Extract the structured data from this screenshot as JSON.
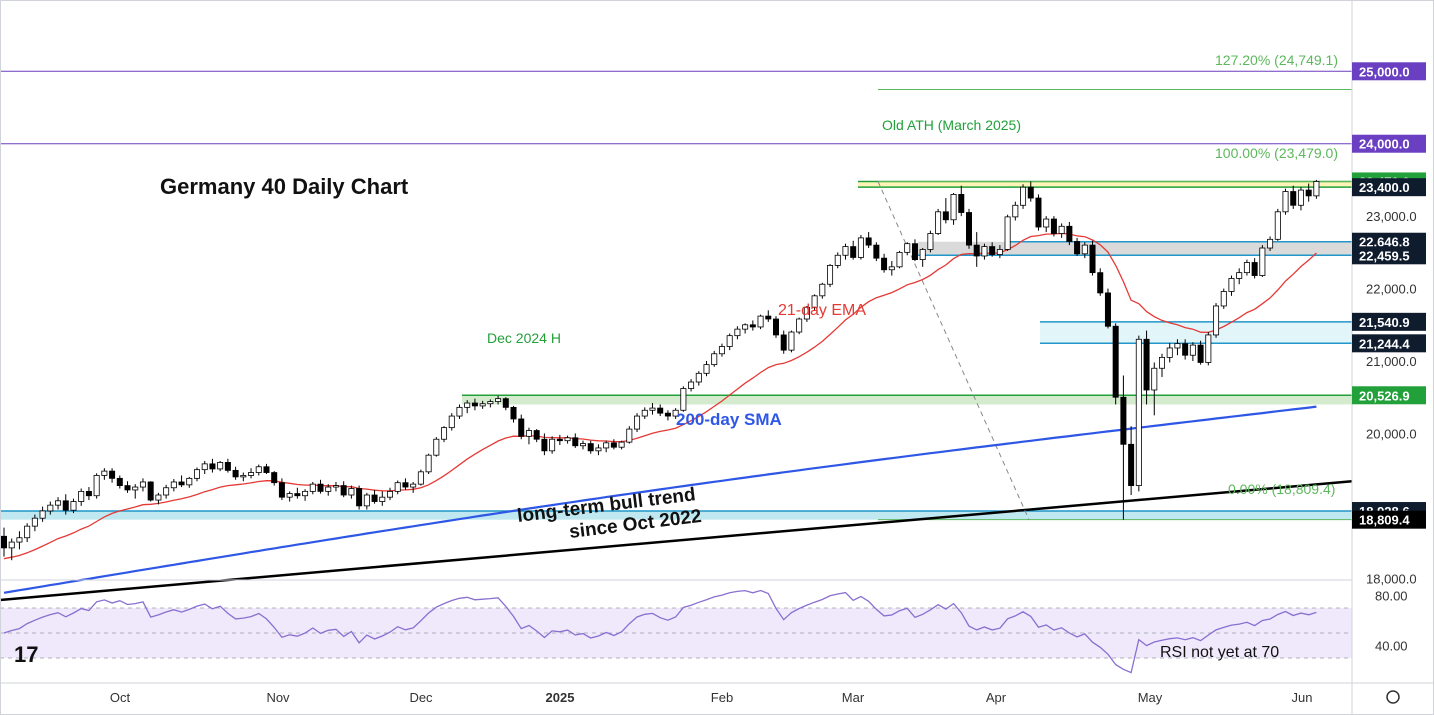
{
  "chart_data": {
    "type": "candlestick",
    "title": "Germany 40 Daily Chart",
    "indicators": {
      "ema_label": "21-day EMA",
      "sma_label": "200-day SMA",
      "ema_color": "#e53935",
      "sma_color": "#2f57e6",
      "rsi_color": "#8a6fd1"
    },
    "y_axis": {
      "ticks": [
        {
          "value": 18000,
          "label": "18,000.0"
        },
        {
          "value": 19000,
          "label": "19,000.0"
        },
        {
          "value": 20000,
          "label": "20,000.0"
        },
        {
          "value": 21000,
          "label": "21,000.0"
        },
        {
          "value": 22000,
          "label": "22,000.0"
        },
        {
          "value": 23000,
          "label": "23,000.0"
        }
      ],
      "ylim": [
        17200,
        25300
      ]
    },
    "x_axis": {
      "ticks": [
        {
          "label": "Oct",
          "bold": false
        },
        {
          "label": "Nov",
          "bold": false
        },
        {
          "label": "Dec",
          "bold": false
        },
        {
          "label": "2025",
          "bold": true
        },
        {
          "label": "Feb",
          "bold": false
        },
        {
          "label": "Mar",
          "bold": false
        },
        {
          "label": "Apr",
          "bold": false
        },
        {
          "label": "May",
          "bold": false
        },
        {
          "label": "Jun",
          "bold": false
        }
      ]
    },
    "price_labels": [
      {
        "value": 25000,
        "label": "25,000.0",
        "color": "#6a3fc1"
      },
      {
        "value": 24000,
        "label": "24,000.0",
        "color": "#6a3fc1"
      },
      {
        "value": 23479,
        "label": "23,479.0",
        "color": "#22a03a"
      },
      {
        "value": 23400,
        "label": "23,400.0",
        "color": "#0f1c2e"
      },
      {
        "value": 22646.8,
        "label": "22,646.8",
        "color": "#0f1c2e"
      },
      {
        "value": 22459.5,
        "label": "22,459.5",
        "color": "#0f1c2e"
      },
      {
        "value": 21540.9,
        "label": "21,540.9",
        "color": "#0f1c2e"
      },
      {
        "value": 21244.4,
        "label": "21,244.4",
        "color": "#0f1c2e"
      },
      {
        "value": 20526.9,
        "label": "20,526.9",
        "color": "#22a03a"
      },
      {
        "value": 18928.6,
        "label": "18,928.6",
        "color": "#0f1c2e"
      },
      {
        "value": 18809.4,
        "label": "18,809.4",
        "color": "#000000"
      }
    ],
    "annotations": {
      "old_ath": "Old ATH (March 2025)",
      "dec_high": "Dec 2024 H",
      "trend_line1": "long-term bull trend",
      "trend_line2": "since Oct 2022",
      "rsi_note": "RSI not yet at 70",
      "fib_127": "127.20% (24,749.1)",
      "fib_100": "100.00% (23,479.0)",
      "fib_0": "0.00% (18,809.4)"
    },
    "fibonacci": [
      {
        "level": 1.272,
        "value": 24749.1
      },
      {
        "level": 1.0,
        "value": 23479.0
      },
      {
        "level": 0.0,
        "value": 18809.4
      }
    ],
    "zones": [
      {
        "from": 23400,
        "to": 23479,
        "color": "#fff3b0"
      },
      {
        "from": 22459.5,
        "to": 22646.8,
        "color": "#d6d6d6"
      },
      {
        "from": 21244.4,
        "to": 21540.9,
        "color": "#dff4f8"
      },
      {
        "from": 20400,
        "to": 20526.9,
        "color": "#cfe9c9"
      },
      {
        "from": 18809.4,
        "to": 18928.6,
        "color": "#b8e6ee"
      }
    ],
    "rsi": {
      "ticks": [
        {
          "value": 80,
          "label": "80.00"
        },
        {
          "value": 40,
          "label": "40.00"
        }
      ],
      "levels": [
        70,
        50,
        30
      ],
      "ylim": [
        15,
        95
      ]
    },
    "ohlc": [
      [
        18580,
        18700,
        18300,
        18420
      ],
      [
        18420,
        18550,
        18250,
        18500
      ],
      [
        18500,
        18650,
        18400,
        18560
      ],
      [
        18560,
        18760,
        18500,
        18720
      ],
      [
        18720,
        18880,
        18650,
        18830
      ],
      [
        18830,
        18990,
        18780,
        18930
      ],
      [
        18930,
        19060,
        18880,
        19010
      ],
      [
        19010,
        19120,
        18950,
        19070
      ],
      [
        19070,
        19160,
        18880,
        18940
      ],
      [
        18940,
        19100,
        18900,
        19060
      ],
      [
        19060,
        19240,
        19000,
        19200
      ],
      [
        19200,
        19260,
        19080,
        19140
      ],
      [
        19140,
        19450,
        19100,
        19420
      ],
      [
        19420,
        19520,
        19360,
        19480
      ],
      [
        19480,
        19520,
        19320,
        19380
      ],
      [
        19380,
        19420,
        19240,
        19280
      ],
      [
        19280,
        19340,
        19180,
        19220
      ],
      [
        19220,
        19300,
        19100,
        19260
      ],
      [
        19260,
        19380,
        19200,
        19330
      ],
      [
        19330,
        19340,
        19060,
        19080
      ],
      [
        19080,
        19180,
        19020,
        19150
      ],
      [
        19150,
        19290,
        19100,
        19250
      ],
      [
        19250,
        19370,
        19200,
        19330
      ],
      [
        19330,
        19420,
        19260,
        19290
      ],
      [
        19290,
        19400,
        19250,
        19380
      ],
      [
        19380,
        19530,
        19340,
        19500
      ],
      [
        19500,
        19620,
        19440,
        19580
      ],
      [
        19580,
        19650,
        19460,
        19510
      ],
      [
        19510,
        19620,
        19480,
        19600
      ],
      [
        19600,
        19650,
        19460,
        19490
      ],
      [
        19490,
        19540,
        19360,
        19400
      ],
      [
        19400,
        19460,
        19340,
        19420
      ],
      [
        19420,
        19520,
        19380,
        19460
      ],
      [
        19460,
        19570,
        19420,
        19540
      ],
      [
        19540,
        19580,
        19440,
        19460
      ],
      [
        19460,
        19480,
        19280,
        19320
      ],
      [
        19320,
        19380,
        19080,
        19120
      ],
      [
        19120,
        19200,
        19060,
        19170
      ],
      [
        19170,
        19250,
        19100,
        19140
      ],
      [
        19140,
        19230,
        19070,
        19200
      ],
      [
        19200,
        19330,
        19160,
        19300
      ],
      [
        19300,
        19360,
        19170,
        19200
      ],
      [
        19200,
        19300,
        19140,
        19260
      ],
      [
        19260,
        19330,
        19200,
        19280
      ],
      [
        19280,
        19340,
        19120,
        19150
      ],
      [
        19150,
        19280,
        19100,
        19240
      ],
      [
        19240,
        19280,
        18950,
        19000
      ],
      [
        19000,
        19180,
        18950,
        19150
      ],
      [
        19150,
        19220,
        19030,
        19060
      ],
      [
        19060,
        19200,
        19000,
        19120
      ],
      [
        19120,
        19250,
        19080,
        19200
      ],
      [
        19200,
        19350,
        19160,
        19320
      ],
      [
        19320,
        19380,
        19220,
        19260
      ],
      [
        19260,
        19330,
        19180,
        19300
      ],
      [
        19300,
        19500,
        19280,
        19470
      ],
      [
        19470,
        19720,
        19440,
        19700
      ],
      [
        19700,
        19950,
        19680,
        19920
      ],
      [
        19920,
        20100,
        19880,
        20080
      ],
      [
        20080,
        20280,
        20040,
        20240
      ],
      [
        20240,
        20400,
        20200,
        20360
      ],
      [
        20360,
        20460,
        20280,
        20420
      ],
      [
        20420,
        20480,
        20320,
        20380
      ],
      [
        20380,
        20450,
        20340,
        20410
      ],
      [
        20410,
        20470,
        20360,
        20440
      ],
      [
        20440,
        20520,
        20400,
        20480
      ],
      [
        20480,
        20500,
        20320,
        20360
      ],
      [
        20360,
        20380,
        20150,
        20200
      ],
      [
        20200,
        20260,
        19920,
        19960
      ],
      [
        19960,
        20080,
        19850,
        20040
      ],
      [
        20040,
        20060,
        19880,
        19920
      ],
      [
        19920,
        20000,
        19700,
        19760
      ],
      [
        19760,
        19960,
        19720,
        19920
      ],
      [
        19920,
        19980,
        19840,
        19900
      ],
      [
        19900,
        19970,
        19860,
        19940
      ],
      [
        19940,
        20000,
        19800,
        19830
      ],
      [
        19830,
        19900,
        19780,
        19860
      ],
      [
        19860,
        19900,
        19720,
        19760
      ],
      [
        19760,
        19850,
        19700,
        19800
      ],
      [
        19800,
        19900,
        19740,
        19870
      ],
      [
        19870,
        19920,
        19780,
        19810
      ],
      [
        19810,
        19900,
        19780,
        19880
      ],
      [
        19880,
        20100,
        19860,
        20060
      ],
      [
        20060,
        20280,
        20020,
        20240
      ],
      [
        20240,
        20360,
        20200,
        20320
      ],
      [
        20320,
        20420,
        20260,
        20350
      ],
      [
        20350,
        20400,
        20240,
        20280
      ],
      [
        20280,
        20320,
        20180,
        20240
      ],
      [
        20240,
        20350,
        20200,
        20320
      ],
      [
        20320,
        20650,
        20300,
        20620
      ],
      [
        20620,
        20750,
        20580,
        20710
      ],
      [
        20710,
        20860,
        20660,
        20830
      ],
      [
        20830,
        21000,
        20790,
        20950
      ],
      [
        20950,
        21140,
        20920,
        21100
      ],
      [
        21100,
        21240,
        21060,
        21200
      ],
      [
        21200,
        21380,
        21150,
        21350
      ],
      [
        21350,
        21480,
        21300,
        21440
      ],
      [
        21440,
        21520,
        21380,
        21500
      ],
      [
        21500,
        21560,
        21420,
        21470
      ],
      [
        21470,
        21640,
        21440,
        21620
      ],
      [
        21620,
        21700,
        21540,
        21580
      ],
      [
        21580,
        21620,
        21320,
        21360
      ],
      [
        21360,
        21420,
        21100,
        21150
      ],
      [
        21150,
        21420,
        21120,
        21400
      ],
      [
        21400,
        21600,
        21370,
        21580
      ],
      [
        21580,
        21760,
        21540,
        21740
      ],
      [
        21740,
        21920,
        21700,
        21900
      ],
      [
        21900,
        22080,
        21860,
        22060
      ],
      [
        22060,
        22340,
        22020,
        22320
      ],
      [
        22320,
        22500,
        22280,
        22460
      ],
      [
        22460,
        22620,
        22400,
        22580
      ],
      [
        22580,
        22660,
        22400,
        22430
      ],
      [
        22430,
        22740,
        22400,
        22700
      ],
      [
        22700,
        22780,
        22560,
        22600
      ],
      [
        22600,
        22640,
        22380,
        22420
      ],
      [
        22420,
        22480,
        22220,
        22260
      ],
      [
        22260,
        22380,
        22180,
        22300
      ],
      [
        22300,
        22520,
        22280,
        22500
      ],
      [
        22500,
        22640,
        22460,
        22620
      ],
      [
        22620,
        22680,
        22380,
        22400
      ],
      [
        22400,
        22560,
        22300,
        22540
      ],
      [
        22540,
        22800,
        22500,
        22760
      ],
      [
        22760,
        23100,
        22740,
        23060
      ],
      [
        23060,
        23250,
        22900,
        22950
      ],
      [
        22950,
        23320,
        22880,
        23300
      ],
      [
        23300,
        23420,
        23000,
        23050
      ],
      [
        23050,
        23100,
        22550,
        22600
      ],
      [
        22600,
        22780,
        22300,
        22450
      ],
      [
        22450,
        22620,
        22400,
        22580
      ],
      [
        22580,
        22640,
        22440,
        22470
      ],
      [
        22470,
        22600,
        22420,
        22540
      ],
      [
        22540,
        23020,
        22520,
        22990
      ],
      [
        22990,
        23200,
        22940,
        23150
      ],
      [
        23150,
        23440,
        23100,
        23400
      ],
      [
        23400,
        23479,
        23200,
        23250
      ],
      [
        23250,
        23300,
        22800,
        22850
      ],
      [
        22850,
        23000,
        22780,
        22960
      ],
      [
        22960,
        23000,
        22720,
        22760
      ],
      [
        22760,
        22900,
        22700,
        22860
      ],
      [
        22860,
        22920,
        22600,
        22650
      ],
      [
        22650,
        22700,
        22450,
        22480
      ],
      [
        22480,
        22640,
        22420,
        22600
      ],
      [
        22600,
        22660,
        22180,
        22220
      ],
      [
        22220,
        22280,
        21900,
        21940
      ],
      [
        21940,
        22000,
        21450,
        21480
      ],
      [
        21480,
        21520,
        20400,
        20500
      ],
      [
        20500,
        20800,
        18809.4,
        19850
      ],
      [
        19850,
        20100,
        19150,
        19280
      ],
      [
        19280,
        21350,
        19200,
        21300
      ],
      [
        21300,
        21420,
        20400,
        20600
      ],
      [
        20600,
        20980,
        20250,
        20900
      ],
      [
        20900,
        21100,
        20780,
        21050
      ],
      [
        21050,
        21250,
        20980,
        21180
      ],
      [
        21180,
        21300,
        21080,
        21240
      ],
      [
        21240,
        21300,
        21020,
        21080
      ],
      [
        21080,
        21260,
        21000,
        21220
      ],
      [
        21220,
        21280,
        20950,
        20980
      ],
      [
        20980,
        21400,
        20940,
        21360
      ],
      [
        21360,
        21800,
        21320,
        21760
      ],
      [
        21760,
        22000,
        21720,
        21960
      ],
      [
        21960,
        22180,
        21900,
        22140
      ],
      [
        22140,
        22280,
        22060,
        22220
      ],
      [
        22220,
        22400,
        22180,
        22360
      ],
      [
        22360,
        22420,
        22140,
        22180
      ],
      [
        22180,
        22600,
        22160,
        22560
      ],
      [
        22560,
        22720,
        22520,
        22680
      ],
      [
        22680,
        23100,
        22660,
        23060
      ],
      [
        23060,
        23380,
        23020,
        23340
      ],
      [
        23340,
        23420,
        23100,
        23150
      ],
      [
        23150,
        23400,
        23080,
        23360
      ],
      [
        23360,
        23450,
        23200,
        23280
      ],
      [
        23280,
        23500,
        23240,
        23479
      ]
    ]
  }
}
